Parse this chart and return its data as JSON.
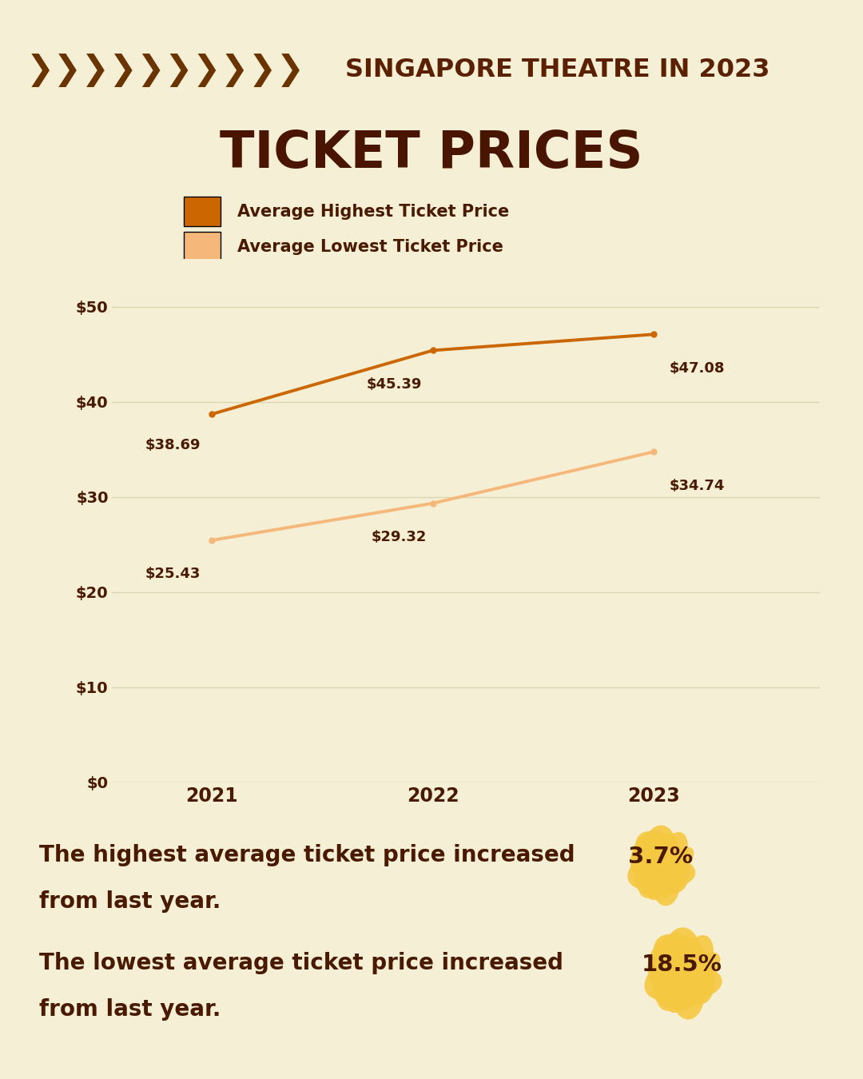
{
  "background_color": "#f5f0d5",
  "title_line1": "SINGAPORE THEATRE IN 2023",
  "title_line2": "TICKET PRICES",
  "years": [
    2021,
    2022,
    2023
  ],
  "highest_values": [
    38.69,
    45.39,
    47.08
  ],
  "lowest_values": [
    25.43,
    29.32,
    34.74
  ],
  "highest_color": "#cc6600",
  "lowest_color": "#f5b87a",
  "label_color": "#4a1a00",
  "grid_color": "#ddd5b0",
  "ylim": [
    0,
    55
  ],
  "yticks": [
    0,
    10,
    20,
    30,
    40,
    50
  ],
  "ytick_labels": [
    "$0",
    "$10",
    "$20",
    "$30",
    "$40",
    "$50"
  ],
  "legend_highest": "Average Highest Ticket Price",
  "legend_lowest": "Average Lowest Ticket Price",
  "stat1_pct": "3.7%",
  "stat2_pct": "18.5%",
  "chevron_color": "#6b3300",
  "title1_color": "#5a2000",
  "title2_color": "#4a1500",
  "splatter_color": "#f5c842",
  "xlim_left": 2020.55,
  "xlim_right": 2023.75
}
